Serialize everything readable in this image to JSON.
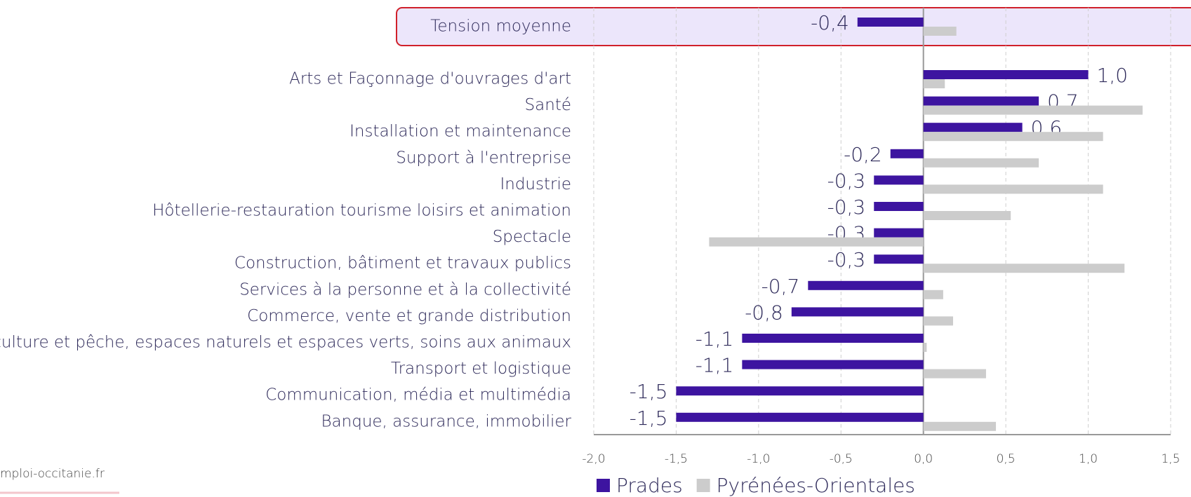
{
  "chart_data": {
    "type": "barh",
    "categories": [
      "Tension moyenne",
      "Arts et Façonnage d'ouvrages d'art",
      "Santé",
      "Installation et maintenance",
      "Support à l'entreprise",
      "Industrie",
      "Hôtellerie-restauration tourisme loisirs et animation",
      "Spectacle",
      "Construction, bâtiment et travaux publics",
      "Services à la personne et à la collectivité",
      "Commerce, vente et grande distribution",
      "Agriculture et pêche, espaces naturels et espaces verts, soins aux animaux",
      "Transport et logistique",
      "Communication, média et multimédia",
      "Banque, assurance, immobilier"
    ],
    "series": [
      {
        "name": "Prades",
        "color": "#3d14a0",
        "values": [
          -0.4,
          1.0,
          0.7,
          0.6,
          -0.2,
          -0.3,
          -0.3,
          -0.3,
          -0.3,
          -0.7,
          -0.8,
          -1.1,
          -1.1,
          -1.5,
          -1.5
        ],
        "value_labels": [
          "-0,4",
          "1,0",
          "0,7",
          "0,6",
          "-0,2",
          "-0,3",
          "-0,3",
          "-0,3",
          "-0,3",
          "-0,7",
          "-0,8",
          "-1,1",
          "-1,1",
          "-1,5",
          "-1,5"
        ]
      },
      {
        "name": "Pyrénées-Orientales",
        "color": "#cccccc",
        "values": [
          0.2,
          0.13,
          1.33,
          1.09,
          0.7,
          1.09,
          0.53,
          -1.3,
          1.22,
          0.12,
          0.18,
          0.02,
          0.38,
          0,
          0.44
        ]
      }
    ],
    "xlim": [
      -2.0,
      1.5
    ],
    "xticks": [
      {
        "value": -2.0,
        "label": "-2,0"
      },
      {
        "value": -1.5,
        "label": "-1,5"
      },
      {
        "value": -1.0,
        "label": "-1,0"
      },
      {
        "value": -0.5,
        "label": "-0,5"
      },
      {
        "value": 0,
        "label": "0,0"
      },
      {
        "value": 0.5,
        "label": "0,5"
      },
      {
        "value": 1.0,
        "label": "1,0"
      },
      {
        "value": 1.5,
        "label": "1,5"
      }
    ],
    "grid": true,
    "legend": "bottom"
  },
  "footer": "mploi-occitanie.fr"
}
